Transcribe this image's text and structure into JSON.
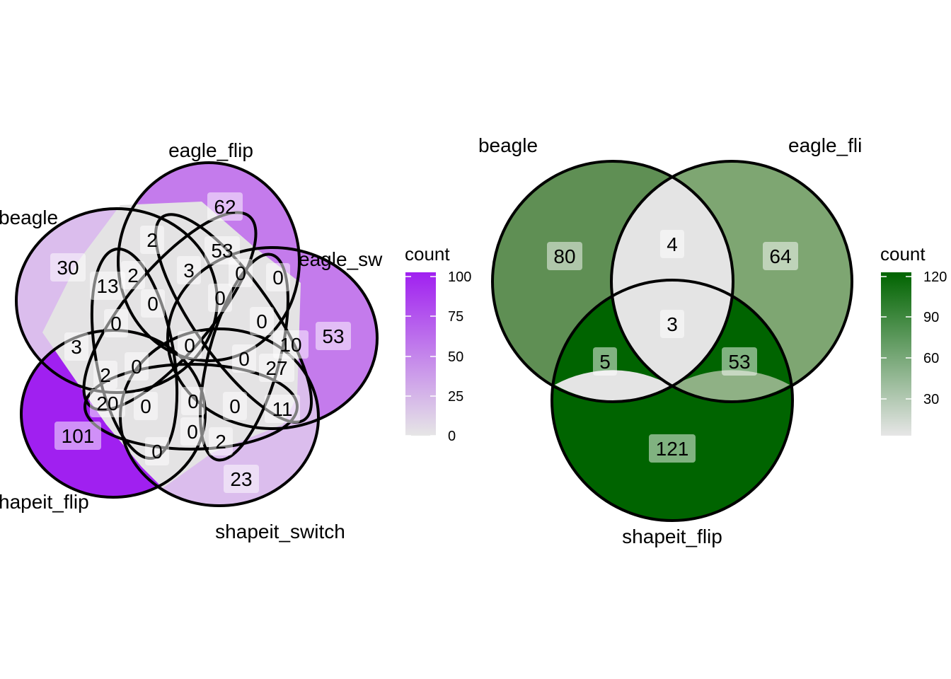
{
  "left_venn": {
    "set_labels": {
      "beagle": "beagle",
      "eagle_flip": "eagle_flip",
      "eagle_switch": "eagle_sw",
      "shapeit_switch": "shapeit_switch",
      "shapeit_flip": "hapeit_flip"
    },
    "region_counts": {
      "beagle_only": "30",
      "eagle_flip_only": "62",
      "eagle_switch_only": "53",
      "shapeit_switch_only": "23",
      "shapeit_flip_only": "101",
      "r_2a": "2",
      "r_53": "53",
      "r_13": "13",
      "r_2b": "2",
      "r_3a": "3",
      "r_0a": "0",
      "r_0b": "0",
      "r_0c": "0",
      "r_0d": "0",
      "r_3b": "3",
      "r_0e": "0",
      "r_0f": "0",
      "r_10": "10",
      "r_0g": "0",
      "r_0h": "0",
      "r_27": "27",
      "r_2c": "2",
      "r_0i": "0",
      "r_20": "20",
      "r_0j": "0",
      "r_0k": "0",
      "r_0l": "0",
      "r_11": "11",
      "r_0m": "0",
      "r_2d": "2",
      "r_0n": "0"
    },
    "legend": {
      "title": "count",
      "ticks": [
        "100",
        "75",
        "50",
        "25",
        "0"
      ],
      "color_low": "#e6e6e6",
      "color_high": "#a020f0"
    }
  },
  "right_venn": {
    "set_labels": {
      "beagle": "beagle",
      "eagle_flip": "eagle_fli",
      "shapeit_flip": "shapeit_flip"
    },
    "region_counts": {
      "beagle_only": "80",
      "eagle_flip_only": "64",
      "shapeit_flip_only": "121",
      "beagle_eagle_flip": "4",
      "all_three": "3",
      "beagle_shapeit_flip": "5",
      "eagle_flip_shapeit_flip": "53"
    },
    "legend": {
      "title": "count",
      "ticks": [
        "120",
        "90",
        "60",
        "30"
      ],
      "color_low": "#e6e6e6",
      "color_high": "#006400"
    }
  }
}
